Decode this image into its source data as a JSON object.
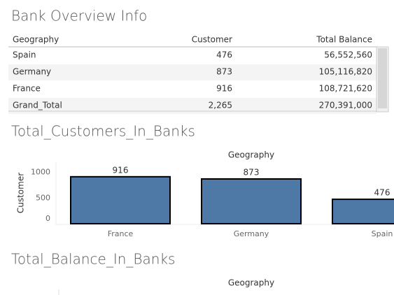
{
  "title": "Bank Overview Info",
  "table": {
    "columns": [
      "Geography",
      "Customer",
      "Total Balance"
    ],
    "rows": [
      [
        "Spain",
        "476",
        "56,552,560"
      ],
      [
        "Germany",
        "873",
        "105,116,820"
      ],
      [
        "France",
        "916",
        "108,721,620"
      ],
      [
        "Grand_Total",
        "2,265",
        "270,391,000"
      ]
    ]
  },
  "chart_data": [
    {
      "type": "bar",
      "title": "Total_Customers_In_Banks",
      "x_label": "Geography",
      "y_label": "Customer",
      "categories": [
        "France",
        "Germany",
        "Spain"
      ],
      "values": [
        916,
        873,
        476
      ],
      "color": "#4e79a7",
      "ylim": [
        0,
        1200
      ],
      "yticks": [
        0,
        500,
        1000
      ]
    },
    {
      "type": "bar",
      "title": "Total_Balance_In_Banks",
      "x_label": "Geography"
    }
  ]
}
